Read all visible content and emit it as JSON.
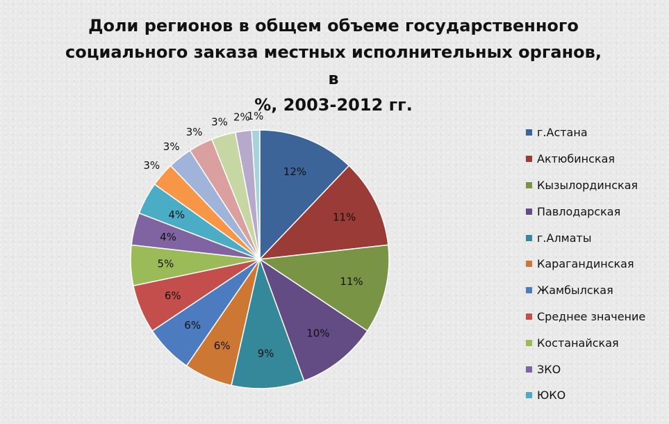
{
  "chart_data": {
    "type": "pie",
    "title": "Доли регионов в общем объеме  государственного\nсоциального заказа местных исполнительных органов, в\n%, 2003-2012 гг.",
    "legend_position": "right",
    "slices": [
      {
        "name": "г.Астана",
        "value": 12,
        "label": "12%",
        "color": "#3d6498"
      },
      {
        "name": "Актюбинская",
        "value": 11,
        "label": "11%",
        "color": "#9b3b38"
      },
      {
        "name": "Кызылординская",
        "value": 11,
        "label": "11%",
        "color": "#789444"
      },
      {
        "name": "Павлодарская",
        "value": 10,
        "label": "10%",
        "color": "#634b83"
      },
      {
        "name": "г.Алматы",
        "value": 9,
        "label": "9%",
        "color": "#358899"
      },
      {
        "name": "Карагандинская",
        "value": 6,
        "label": "6%",
        "color": "#cc7834"
      },
      {
        "name": "Жамбылская",
        "value": 6,
        "label": "6%",
        "color": "#4c7bc0"
      },
      {
        "name": "Среднее значение",
        "value": 6,
        "label": "6%",
        "color": "#c44e4b"
      },
      {
        "name": "Костанайская",
        "value": 5,
        "label": "5%",
        "color": "#9bbb59"
      },
      {
        "name": "ЗКО",
        "value": 4,
        "label": "4%",
        "color": "#8064a2"
      },
      {
        "name": "ЮКО",
        "value": 4,
        "label": "4%",
        "color": "#4bacc6"
      },
      {
        "name": "",
        "value": 3,
        "label": "3%",
        "color": "#f79646"
      },
      {
        "name": "",
        "value": 3,
        "label": "3%",
        "color": "#9fb4d8"
      },
      {
        "name": "",
        "value": 3,
        "label": "3%",
        "color": "#d9a09f"
      },
      {
        "name": "",
        "value": 3,
        "label": "3%",
        "color": "#c6d7a4"
      },
      {
        "name": "",
        "value": 2,
        "label": "2%",
        "color": "#b7a9cb"
      },
      {
        "name": "",
        "value": 1,
        "label": "1%",
        "color": "#a6d1dd"
      }
    ]
  }
}
